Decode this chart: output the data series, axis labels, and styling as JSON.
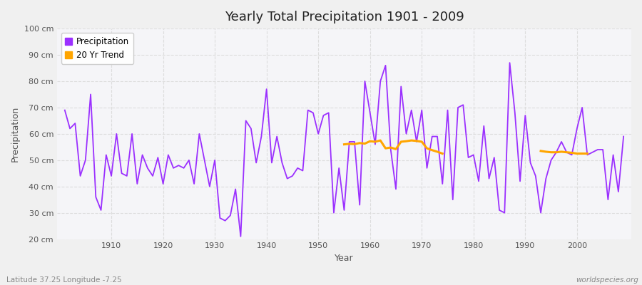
{
  "title": "Yearly Total Precipitation 1901 - 2009",
  "xlabel": "Year",
  "ylabel": "Precipitation",
  "subtitle": "Latitude 37.25 Longitude -7.25",
  "watermark": "worldspecies.org",
  "precip_color": "#9B30FF",
  "trend_color": "#FFA500",
  "bg_color": "#F0F0F0",
  "plot_bg": "#F5F5F8",
  "grid_color": "#DDDDDD",
  "ylim": [
    20,
    100
  ],
  "yticks": [
    20,
    30,
    40,
    50,
    60,
    70,
    80,
    90,
    100
  ],
  "xlim": [
    1901,
    2009
  ],
  "years": [
    1901,
    1902,
    1903,
    1904,
    1905,
    1906,
    1907,
    1908,
    1909,
    1910,
    1911,
    1912,
    1913,
    1914,
    1915,
    1916,
    1917,
    1918,
    1919,
    1920,
    1921,
    1922,
    1923,
    1924,
    1925,
    1926,
    1927,
    1928,
    1929,
    1930,
    1931,
    1932,
    1933,
    1934,
    1935,
    1936,
    1937,
    1938,
    1939,
    1940,
    1941,
    1942,
    1943,
    1944,
    1945,
    1946,
    1947,
    1948,
    1949,
    1950,
    1951,
    1952,
    1953,
    1954,
    1955,
    1956,
    1957,
    1958,
    1959,
    1960,
    1961,
    1962,
    1963,
    1964,
    1965,
    1966,
    1967,
    1968,
    1969,
    1970,
    1971,
    1972,
    1973,
    1974,
    1975,
    1976,
    1977,
    1978,
    1979,
    1980,
    1981,
    1982,
    1983,
    1984,
    1985,
    1986,
    1987,
    1988,
    1989,
    1990,
    1991,
    1992,
    1993,
    1994,
    1995,
    1996,
    1997,
    1998,
    1999,
    2000,
    2001,
    2002,
    2003,
    2004,
    2005,
    2006,
    2007,
    2008,
    2009
  ],
  "precip": [
    69,
    62,
    64,
    44,
    50,
    75,
    36,
    31,
    52,
    44,
    60,
    45,
    44,
    60,
    41,
    52,
    47,
    44,
    51,
    41,
    52,
    47,
    48,
    47,
    50,
    41,
    60,
    50,
    40,
    50,
    28,
    27,
    29,
    39,
    21,
    65,
    62,
    49,
    59,
    77,
    49,
    59,
    49,
    43,
    44,
    47,
    46,
    69,
    68,
    60,
    67,
    68,
    30,
    47,
    31,
    57,
    57,
    33,
    80,
    68,
    56,
    80,
    86,
    54,
    39,
    78,
    60,
    69,
    57,
    69,
    47,
    59,
    59,
    41,
    69,
    35,
    70,
    71,
    51,
    52,
    42,
    63,
    43,
    51,
    31,
    30,
    87,
    68,
    42,
    67,
    49,
    44,
    30,
    43,
    50,
    53,
    57,
    53,
    52,
    62,
    70,
    52,
    53,
    54,
    54,
    35,
    52,
    38,
    59
  ],
  "trend_seg1_years": [
    1955,
    1956,
    1957,
    1958,
    1959,
    1960,
    1961,
    1962,
    1963,
    1964,
    1965,
    1966,
    1967,
    1968,
    1969,
    1970,
    1971,
    1972,
    1973,
    1974
  ],
  "trend_seg1_values": [
    56.0,
    56.2,
    56.1,
    56.5,
    56.3,
    57.2,
    57.0,
    57.5,
    54.5,
    54.8,
    54.2,
    57.0,
    57.2,
    57.5,
    57.3,
    57.0,
    54.5,
    53.8,
    53.2,
    52.5
  ],
  "trend_seg2_years": [
    1993,
    1994,
    1995,
    1996,
    1997,
    1998,
    1999,
    2000,
    2001,
    2002
  ],
  "trend_seg2_values": [
    53.5,
    53.2,
    53.0,
    53.0,
    53.2,
    53.0,
    52.8,
    52.5,
    52.5,
    52.5
  ]
}
